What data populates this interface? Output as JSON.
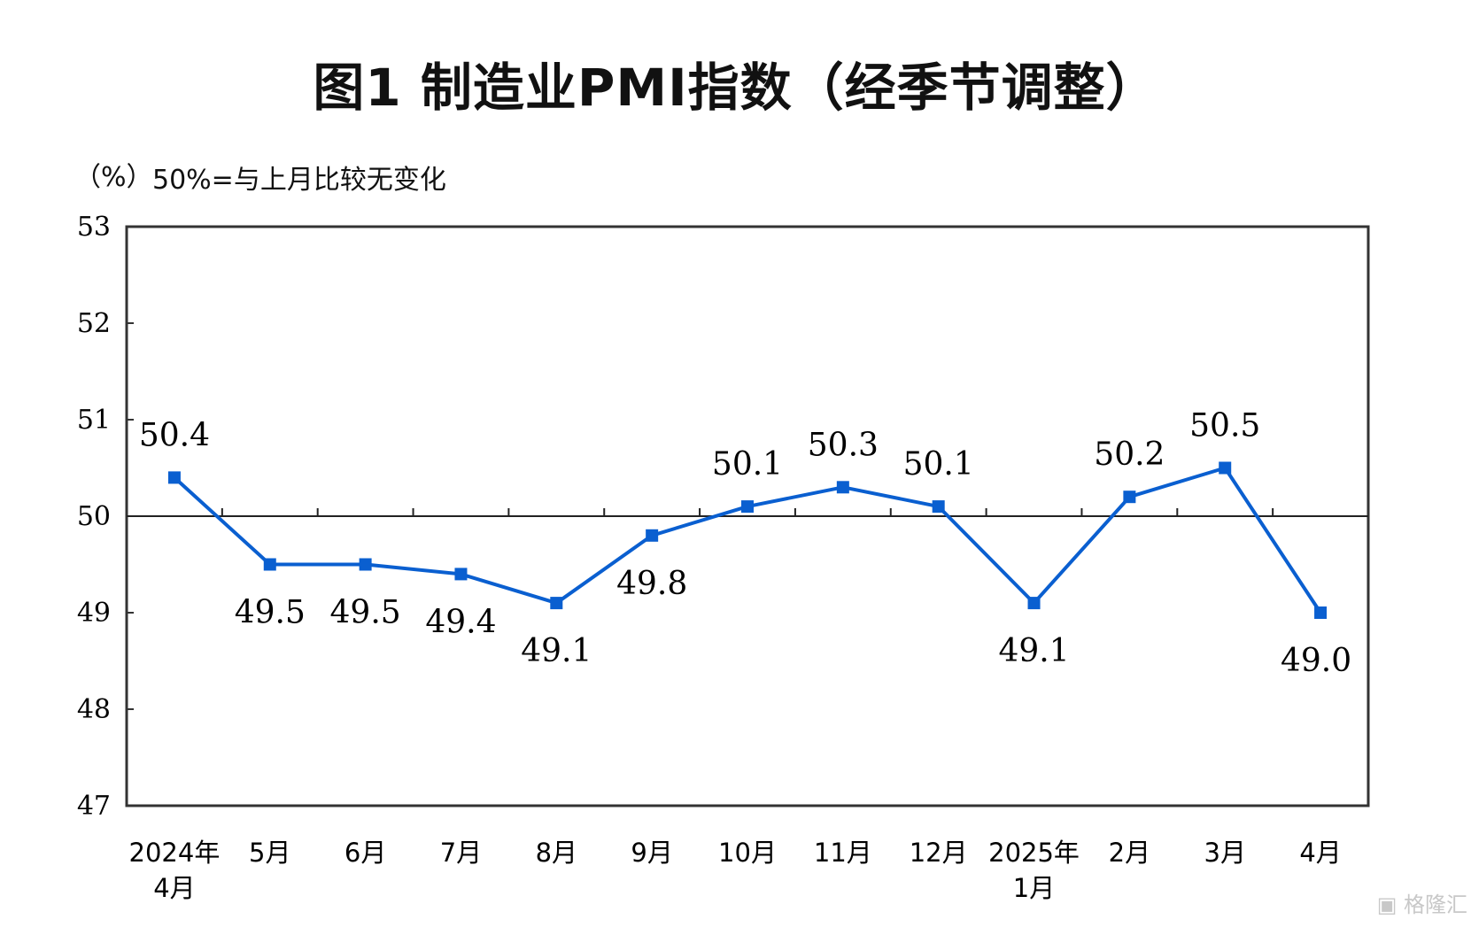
{
  "chart_data": {
    "type": "line",
    "title": "图1  制造业PMI指数（经季节调整）",
    "ylabel": "（%）",
    "note": "50%=与上月比较无变化",
    "categories": [
      [
        "2024年",
        "4月"
      ],
      [
        "5月"
      ],
      [
        "6月"
      ],
      [
        "7月"
      ],
      [
        "8月"
      ],
      [
        "9月"
      ],
      [
        "10月"
      ],
      [
        "11月"
      ],
      [
        "12月"
      ],
      [
        "2025年",
        "1月"
      ],
      [
        "2月"
      ],
      [
        "3月"
      ],
      [
        "4月"
      ]
    ],
    "values": [
      50.4,
      49.5,
      49.5,
      49.4,
      49.1,
      49.8,
      50.1,
      50.3,
      50.1,
      49.1,
      50.2,
      50.5,
      49.0
    ],
    "data_labels": [
      "50.4",
      "49.5",
      "49.5",
      "49.4",
      "49.1",
      "49.8",
      "50.1",
      "50.3",
      "50.1",
      "49.1",
      "50.2",
      "50.5",
      "49.0"
    ],
    "label_position": [
      "above",
      "below",
      "below",
      "below",
      "below",
      "below",
      "above",
      "above",
      "above",
      "below",
      "above",
      "above",
      "below"
    ],
    "ylim": [
      47,
      53
    ],
    "yticks": [
      "47",
      "48",
      "49",
      "50",
      "51",
      "52",
      "53"
    ],
    "reference_line": 50,
    "grid": false,
    "line_color": "#0a5fd0",
    "marker": "square"
  },
  "watermark": "格隆汇"
}
